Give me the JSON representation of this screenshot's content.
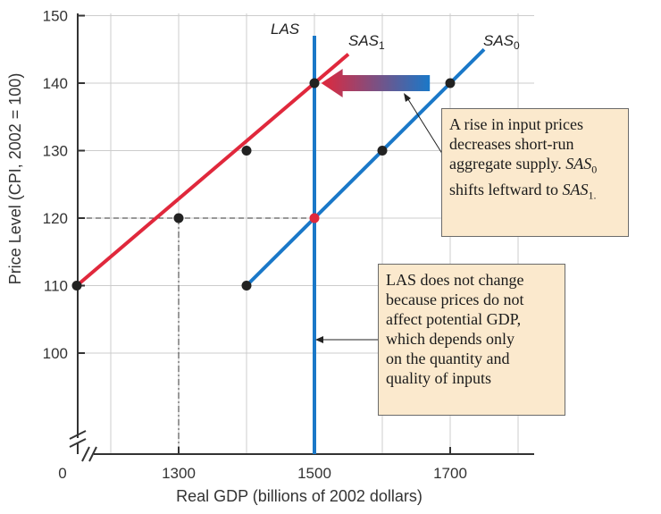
{
  "chart_data": {
    "type": "line",
    "xlabel": "Real GDP (billions of 2002 dollars)",
    "ylabel": "Price Level (CPI, 2002 = 100)",
    "origin_label": "0",
    "x_ticks": [
      1300,
      1500,
      1700
    ],
    "y_ticks": [
      100,
      110,
      120,
      130,
      140,
      150
    ],
    "grid": true,
    "series": [
      {
        "name": "SAS1",
        "label_main": "SAS",
        "label_sub": "1",
        "color": "#e0283c",
        "points": [
          {
            "x": 1150,
            "y": 110
          },
          {
            "x": 1300,
            "y": 120
          },
          {
            "x": 1400,
            "y": 130
          },
          {
            "x": 1500,
            "y": 140
          }
        ]
      },
      {
        "name": "SAS0",
        "label_main": "SAS",
        "label_sub": "0",
        "color": "#1a78c8",
        "points": [
          {
            "x": 1400,
            "y": 110
          },
          {
            "x": 1500,
            "y": 120
          },
          {
            "x": 1600,
            "y": 130
          },
          {
            "x": 1700,
            "y": 140
          }
        ]
      },
      {
        "name": "LAS",
        "label_main": "LAS",
        "label_sub": "",
        "color": "#1a78c8",
        "x": 1500
      }
    ],
    "equilibrium": {
      "x": 1300,
      "y": 120
    },
    "highlight_point": {
      "x": 1500,
      "y": 120,
      "color": "#e0283c"
    },
    "shift_arrow": {
      "from_x": 1670,
      "to_x": 1510,
      "y": 140,
      "from_color": "#1a78c8",
      "to_color": "#e0283c"
    }
  },
  "notes": {
    "shift": {
      "line1": "A rise in input prices",
      "line2": "decreases short-run",
      "line3_pre": "aggregate supply. ",
      "line3_var": "SAS",
      "line3_sub": "0",
      "line4_pre": "shifts leftward to ",
      "line4_var": "SAS",
      "line4_sub": "1."
    },
    "las": {
      "line1": "LAS does not change",
      "line2": "because prices do not",
      "line3": "affect potential GDP,",
      "line4": "which depends only",
      "line5": "on the quantity and",
      "line6": "quality of inputs"
    }
  }
}
